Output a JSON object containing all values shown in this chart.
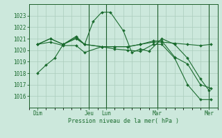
{
  "background_color": "#cce8dc",
  "grid_color": "#aaccbb",
  "line_color": "#1a6b2e",
  "dark_line_color": "#1a5c28",
  "xtick_labels": [
    "Dim",
    "Jeu",
    "Lun",
    "Mar",
    "Mer"
  ],
  "xtick_positions": [
    0,
    6,
    8,
    14,
    20
  ],
  "ytick_labels": [
    "1016",
    "1017",
    "1018",
    "1019",
    "1020",
    "1021",
    "1022",
    "1023"
  ],
  "ytick_positions": [
    1016,
    1017,
    1018,
    1019,
    1020,
    1021,
    1022,
    1023
  ],
  "ylim": [
    1015.4,
    1023.8
  ],
  "xlim": [
    -0.5,
    21.0
  ],
  "xlabel": "Pression niveau de la mer( hPa )",
  "vlines": [
    6,
    8,
    14,
    20
  ],
  "series": [
    {
      "x": [
        0,
        1.0,
        2.0,
        3.0,
        4.5,
        5.5,
        6.5,
        7.5,
        8.5,
        10,
        11,
        12,
        13,
        14.5,
        16,
        17.5,
        19,
        20
      ],
      "y": [
        1018.0,
        1018.7,
        1019.3,
        1020.5,
        1021.2,
        1020.5,
        1022.5,
        1023.3,
        1023.3,
        1021.7,
        1019.8,
        1020.1,
        1019.9,
        1021.0,
        1020.5,
        1019.3,
        1017.5,
        1016.5
      ]
    },
    {
      "x": [
        0,
        1.5,
        3,
        4.5,
        5.5,
        7.5,
        9,
        10.5,
        12,
        13.5,
        14.5,
        16,
        17.5,
        19,
        20.2
      ],
      "y": [
        1020.5,
        1021.0,
        1020.5,
        1021.0,
        1020.5,
        1020.3,
        1020.3,
        1020.3,
        1020.5,
        1020.7,
        1020.7,
        1020.6,
        1020.5,
        1020.4,
        1020.5
      ]
    },
    {
      "x": [
        0,
        1.5,
        3,
        4.5,
        5.5,
        7.5,
        9,
        10.5,
        12,
        13.5,
        14.5,
        16,
        17.5,
        19,
        20.2
      ],
      "y": [
        1020.5,
        1021.0,
        1020.5,
        1021.1,
        1020.5,
        1020.3,
        1020.3,
        1020.3,
        1020.5,
        1020.8,
        1020.8,
        1019.4,
        1018.8,
        1017.0,
        1016.7
      ]
    },
    {
      "x": [
        0,
        1.5,
        3,
        4.5,
        5.5,
        7.5,
        9,
        10.5,
        12,
        13.5,
        14.5,
        16,
        17.5,
        19,
        20.2
      ],
      "y": [
        1020.5,
        1020.7,
        1020.4,
        1020.4,
        1019.8,
        1020.3,
        1020.1,
        1020.0,
        1019.9,
        1020.5,
        1020.5,
        1019.3,
        1017.0,
        1015.7,
        1015.7
      ]
    }
  ]
}
